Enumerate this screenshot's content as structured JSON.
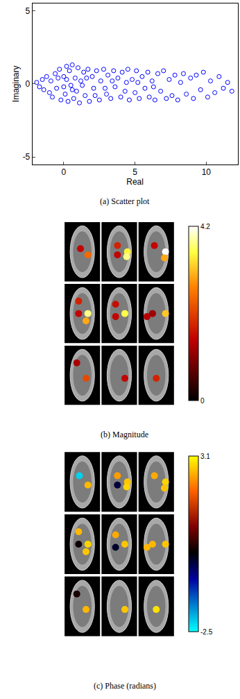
{
  "chart_data": [
    {
      "type": "scatter",
      "caption": "(a) Scatter plot",
      "x_label": "Real",
      "y_label": "Imaginary",
      "color": "#0000ff",
      "marker": "circle-open",
      "x": [
        -1.9,
        -1.7,
        -1.5,
        -1.4,
        -1.2,
        -1.0,
        -0.9,
        -0.8,
        -0.6,
        -0.5,
        -0.3,
        -0.2,
        0.0,
        0.1,
        0.2,
        0.3,
        0.4,
        0.5,
        0.6,
        0.7,
        0.8,
        0.9,
        1.0,
        1.1,
        1.2,
        1.4,
        1.5,
        1.7,
        1.8,
        2.0,
        2.1,
        2.3,
        2.5,
        2.6,
        2.8,
        3.0,
        3.1,
        3.3,
        3.5,
        3.6,
        3.8,
        4.0,
        4.1,
        4.3,
        4.5,
        4.6,
        4.8,
        5.0,
        5.1,
        5.3,
        5.5,
        5.7,
        5.9,
        6.0,
        6.2,
        6.4,
        6.6,
        6.8,
        7.0,
        7.2,
        7.4,
        7.6,
        7.8,
        8.0,
        8.2,
        8.4,
        8.6,
        8.9,
        9.1,
        9.3,
        9.6,
        9.8,
        10.1,
        10.3,
        10.6,
        10.9,
        11.2,
        11.5,
        11.8,
        0.0,
        0.2,
        -0.4,
        0.6,
        1.3,
        1.6,
        2.2,
        2.9,
        3.4,
        4.4,
        5.2,
        6.3
      ],
      "y": [
        0.1,
        -0.2,
        0.3,
        -0.4,
        0.5,
        -0.6,
        0.2,
        -0.9,
        0.7,
        -0.3,
        1.0,
        -1.1,
        0.5,
        -0.7,
        1.2,
        -1.2,
        0.9,
        -0.1,
        1.3,
        -1.0,
        0.4,
        -0.5,
        1.1,
        -1.3,
        0.2,
        0.8,
        -0.8,
        1.0,
        -1.2,
        0.5,
        -0.3,
        0.9,
        -1.1,
        0.2,
        1.0,
        -0.7,
        0.6,
        -1.0,
        0.9,
        -0.2,
        0.4,
        -0.9,
        0.8,
        -0.5,
        1.0,
        -1.1,
        0.3,
        -0.6,
        0.9,
        -1.0,
        0.5,
        -0.3,
        0.8,
        -0.9,
        0.2,
        -1.1,
        0.7,
        -0.5,
        0.9,
        -1.0,
        0.3,
        -0.8,
        0.6,
        -1.1,
        0.1,
        0.7,
        -0.7,
        0.4,
        -1.0,
        0.6,
        -0.4,
        0.8,
        -0.9,
        0.2,
        -0.6,
        0.5,
        -0.3,
        0.1,
        -0.5,
        -0.2,
        0.3,
        0.4,
        -0.4,
        -0.1,
        0.4,
        -0.8,
        -0.3,
        0.2,
        0.1,
        0.1,
        -0.2
      ],
      "xlim": [
        -2.2,
        12.2
      ],
      "xticks": [
        0,
        5,
        10
      ],
      "ylim": [
        -5.5,
        5.5
      ],
      "yticks": [
        -5,
        0,
        5
      ]
    },
    {
      "type": "image",
      "caption": "(b) Magnitude",
      "colorbar": {
        "range": [
          0,
          4.2
        ],
        "ticks": [
          0,
          4.2
        ]
      },
      "activations": {
        "slice": [
          0,
          0,
          1,
          1,
          1,
          1,
          2,
          2,
          2,
          3,
          3,
          3,
          3,
          4,
          4,
          4,
          5,
          5,
          5,
          6,
          6,
          7,
          8
        ],
        "x": [
          0.45,
          0.65,
          0.45,
          0.45,
          0.72,
          0.7,
          0.45,
          0.75,
          0.72,
          0.4,
          0.4,
          0.65,
          0.6,
          0.4,
          0.4,
          0.65,
          0.4,
          0.25,
          0.75,
          0.35,
          0.6,
          0.65,
          0.5
        ],
        "y": [
          0.55,
          0.45,
          0.6,
          0.45,
          0.5,
          0.42,
          0.6,
          0.5,
          0.4,
          0.7,
          0.5,
          0.5,
          0.38,
          0.65,
          0.45,
          0.5,
          0.5,
          0.45,
          0.5,
          0.7,
          0.45,
          0.45,
          0.45
        ],
        "values": [
          1.5,
          2.5,
          1.8,
          1.5,
          3.5,
          3.8,
          1.5,
          4.2,
          3.0,
          1.8,
          1.5,
          3.8,
          3.0,
          1.6,
          1.5,
          3.6,
          1.2,
          1.4,
          3.2,
          1.3,
          2.2,
          1.5,
          1.8
        ]
      }
    },
    {
      "type": "image",
      "caption": "(c) Phase (radians)",
      "colorbar": {
        "range": [
          -2.5,
          3.1
        ],
        "ticks": [
          -2.5,
          3.1
        ]
      },
      "activations": {
        "slice": [
          0,
          0,
          1,
          1,
          1,
          1,
          2,
          2,
          2,
          3,
          3,
          3,
          3,
          4,
          4,
          4,
          5,
          5,
          5,
          6,
          6,
          7,
          8
        ],
        "x": [
          0.42,
          0.65,
          0.45,
          0.45,
          0.72,
          0.7,
          0.45,
          0.75,
          0.72,
          0.4,
          0.4,
          0.65,
          0.6,
          0.4,
          0.4,
          0.65,
          0.4,
          0.25,
          0.75,
          0.35,
          0.6,
          0.65,
          0.5
        ],
        "y": [
          0.6,
          0.45,
          0.6,
          0.45,
          0.5,
          0.42,
          0.6,
          0.5,
          0.4,
          0.7,
          0.5,
          0.5,
          0.38,
          0.65,
          0.45,
          0.5,
          0.5,
          0.45,
          0.5,
          0.7,
          0.45,
          0.45,
          0.45
        ],
        "values": [
          -2.2,
          2.6,
          2.4,
          -0.3,
          2.7,
          2.8,
          2.5,
          2.8,
          2.7,
          2.6,
          0.1,
          2.8,
          2.7,
          2.5,
          -0.2,
          2.7,
          2.6,
          2.6,
          2.7,
          0.2,
          2.6,
          2.7,
          2.9
        ]
      }
    }
  ]
}
